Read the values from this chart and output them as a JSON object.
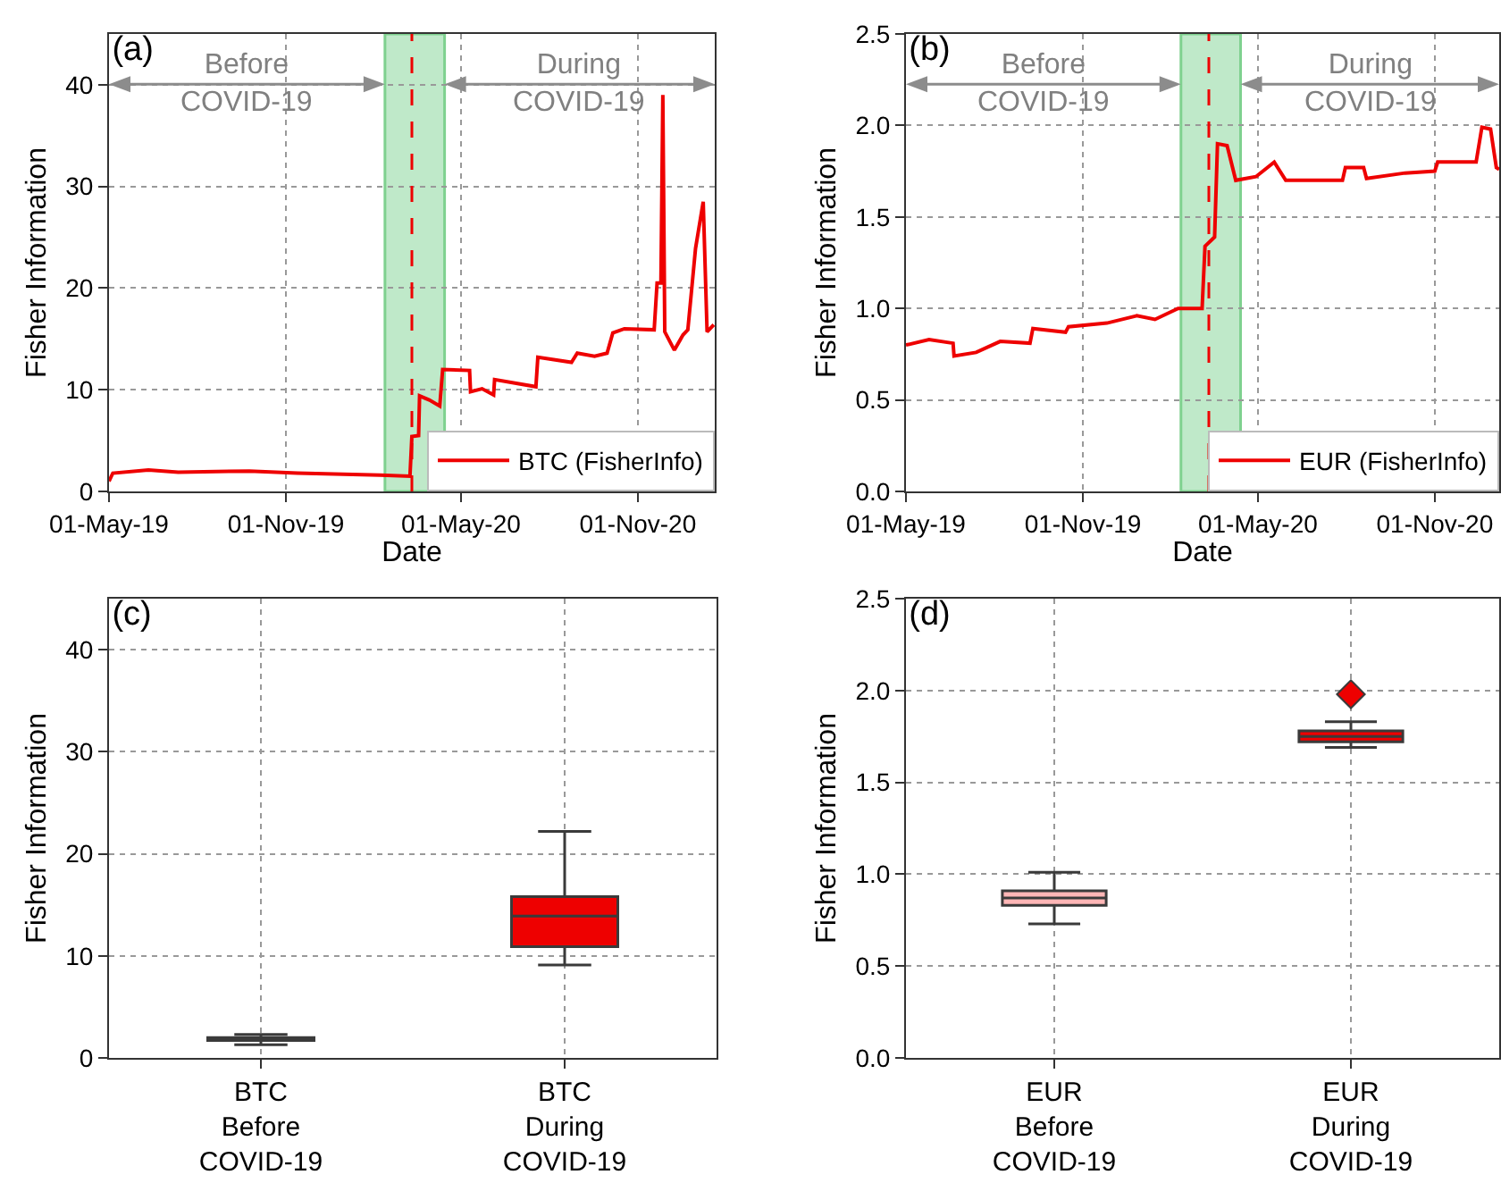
{
  "chart_data": [
    {
      "type": "line",
      "title": "(a)",
      "xlabel": "Date",
      "ylabel": "Fisher Information",
      "xlim": [
        "2019-05-01",
        "2021-01-20"
      ],
      "xticks": [
        {
          "value": "2019-05-01",
          "label": "01-May-19"
        },
        {
          "value": "2019-11-01",
          "label": "01-Nov-19"
        },
        {
          "value": "2020-05-01",
          "label": "01-May-20"
        },
        {
          "value": "2020-11-01",
          "label": "01-Nov-20"
        }
      ],
      "ylim": [
        0,
        45
      ],
      "yticks": [
        0,
        10,
        20,
        30,
        40
      ],
      "grid": true,
      "legend": "bottom right",
      "series": [
        {
          "name": "BTC (FisherInfo)",
          "color": "#ee0000",
          "x": [
            "2019-05-01",
            "2019-05-05",
            "2019-06-11",
            "2019-07-12",
            "2019-09-24",
            "2019-11-13",
            "2020-02-07",
            "2020-03-09",
            "2020-03-11",
            "2020-03-18",
            "2020-03-19",
            "2020-03-29",
            "2020-04-09",
            "2020-04-12",
            "2020-05-10",
            "2020-05-11",
            "2020-05-23",
            "2020-06-04",
            "2020-06-05",
            "2020-07-18",
            "2020-07-20",
            "2020-08-24",
            "2020-08-30",
            "2020-09-17",
            "2020-09-30",
            "2020-10-06",
            "2020-10-18",
            "2020-11-18",
            "2020-11-21",
            "2020-11-25",
            "2020-11-27",
            "2020-11-29",
            "2020-12-09",
            "2020-12-18",
            "2020-12-23",
            "2020-12-31",
            "2021-01-08",
            "2021-01-12",
            "2021-01-19"
          ],
          "values": [
            1.0,
            1.8,
            2.1,
            1.9,
            2.0,
            1.8,
            1.6,
            1.5,
            5.4,
            5.5,
            9.4,
            9.0,
            8.4,
            12.0,
            11.9,
            9.8,
            10.1,
            9.5,
            11.0,
            10.3,
            13.2,
            12.7,
            13.6,
            13.3,
            13.6,
            15.6,
            16.0,
            15.9,
            20.5,
            20.5,
            39.0,
            15.7,
            13.9,
            15.4,
            15.9,
            23.9,
            28.5,
            15.7,
            16.4
          ]
        }
      ],
      "bands": [
        {
          "axis": "x",
          "from": "2020-02-12",
          "to": "2020-04-14",
          "color": "#bfe9c9"
        }
      ],
      "ref_lines": [
        {
          "axis": "x",
          "value": "2020-03-11",
          "color": "#ee0000",
          "line_style": "dashed"
        }
      ],
      "annotations": [
        "Before\nCOVID-19",
        "During\nCOVID-19"
      ]
    },
    {
      "type": "line",
      "title": "(b)",
      "xlabel": "Date",
      "ylabel": "Fisher Information",
      "xlim": [
        "2019-05-01",
        "2021-01-07"
      ],
      "xticks": [
        {
          "value": "2019-05-01",
          "label": "01-May-19"
        },
        {
          "value": "2019-11-01",
          "label": "01-Nov-19"
        },
        {
          "value": "2020-05-01",
          "label": "01-May-20"
        },
        {
          "value": "2020-11-01",
          "label": "01-Nov-20"
        }
      ],
      "ylim": [
        0,
        2.5
      ],
      "yticks": [
        {
          "value": 0,
          "label": "0.0"
        },
        {
          "value": 0.5,
          "label": "0.5"
        },
        {
          "value": 1,
          "label": "1.0"
        },
        {
          "value": 1.5,
          "label": "1.5"
        },
        {
          "value": 2,
          "label": "2.0"
        },
        {
          "value": 2.5,
          "label": "2.5"
        }
      ],
      "grid": true,
      "legend": "bottom right",
      "series": [
        {
          "name": "EUR (FisherInfo)",
          "color": "#ee0000",
          "x": [
            "2019-05-01",
            "2019-05-25",
            "2019-06-19",
            "2019-06-20",
            "2019-07-13",
            "2019-08-07",
            "2019-09-07",
            "2019-09-10",
            "2019-10-14",
            "2019-10-17",
            "2019-11-26",
            "2019-12-27",
            "2020-01-15",
            "2020-02-08",
            "2020-03-04",
            "2020-03-07",
            "2020-03-17",
            "2020-03-20",
            "2020-03-30",
            "2020-04-08",
            "2020-04-29",
            "2020-05-18",
            "2020-05-30",
            "2020-07-28",
            "2020-07-31",
            "2020-08-19",
            "2020-08-22",
            "2020-10-01",
            "2020-11-01",
            "2020-11-04",
            "2020-12-14",
            "2020-12-20",
            "2020-12-29",
            "2021-01-04",
            "2021-01-07"
          ],
          "values": [
            0.8,
            0.83,
            0.81,
            0.74,
            0.76,
            0.82,
            0.81,
            0.89,
            0.87,
            0.9,
            0.92,
            0.96,
            0.94,
            1.0,
            1.0,
            1.34,
            1.39,
            1.9,
            1.89,
            1.7,
            1.72,
            1.8,
            1.7,
            1.7,
            1.77,
            1.77,
            1.71,
            1.74,
            1.75,
            1.8,
            1.8,
            1.99,
            1.98,
            1.77,
            1.76
          ]
        }
      ],
      "bands": [
        {
          "axis": "x",
          "from": "2020-02-11",
          "to": "2020-04-13",
          "color": "#bfe9c9"
        }
      ],
      "ref_lines": [
        {
          "axis": "x",
          "value": "2020-03-11",
          "color": "#ee0000",
          "line_style": "dashed"
        }
      ],
      "annotations": [
        "Before\nCOVID-19",
        "During\nCOVID-19"
      ]
    },
    {
      "type": "box",
      "title": "(c)",
      "ylabel": "Fisher Information",
      "categories": [
        "BTC\nBefore\nCOVID-19",
        "BTC\nDuring\nCOVID-19"
      ],
      "ylim": [
        0,
        45
      ],
      "yticks": [
        0,
        10,
        20,
        30,
        40
      ],
      "grid": true,
      "colors": [
        "#ffb6b6",
        "#ee0000"
      ],
      "boxes": [
        {
          "low": 1.3,
          "q1": 1.7,
          "median": 1.8,
          "q3": 2.0,
          "high": 2.3
        },
        {
          "low": 9.1,
          "q1": 10.9,
          "median": 13.9,
          "q3": 15.8,
          "high": 22.2
        }
      ]
    },
    {
      "type": "box",
      "title": "(d)",
      "ylabel": "Fisher Information",
      "categories": [
        "EUR\nBefore\nCOVID-19",
        "EUR\nDuring\nCOVID-19"
      ],
      "ylim": [
        0,
        2.5
      ],
      "yticks": [
        {
          "value": 0,
          "label": "0.0"
        },
        {
          "value": 0.5,
          "label": "0.5"
        },
        {
          "value": 1,
          "label": "1.0"
        },
        {
          "value": 1.5,
          "label": "1.5"
        },
        {
          "value": 2,
          "label": "2.0"
        },
        {
          "value": 2.5,
          "label": "2.5"
        }
      ],
      "grid": true,
      "colors": [
        "#ffb6b6",
        "#ee0000"
      ],
      "boxes": [
        {
          "low": 0.73,
          "q1": 0.83,
          "median": 0.87,
          "q3": 0.91,
          "high": 1.01
        },
        {
          "low": 1.69,
          "q1": 1.72,
          "median": 1.75,
          "q3": 1.78,
          "high": 1.83,
          "outliers": [
            1.98
          ]
        }
      ]
    }
  ]
}
